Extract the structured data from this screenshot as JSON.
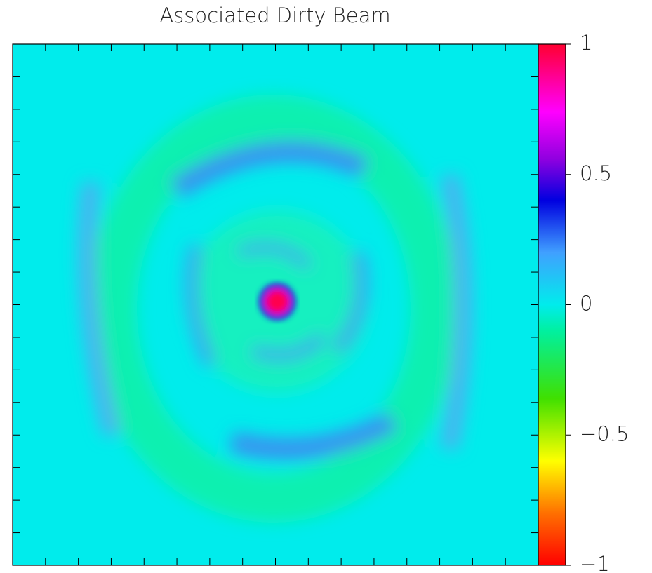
{
  "chart_data": {
    "type": "heatmap",
    "title": "Associated Dirty Beam",
    "colorbar_lim": [
      -1,
      1
    ],
    "colorbar_ticks": [
      {
        "value": -1,
        "label": "−1"
      },
      {
        "value": -0.5,
        "label": "−0.5"
      },
      0,
      0.5,
      1
    ]
  }
}
